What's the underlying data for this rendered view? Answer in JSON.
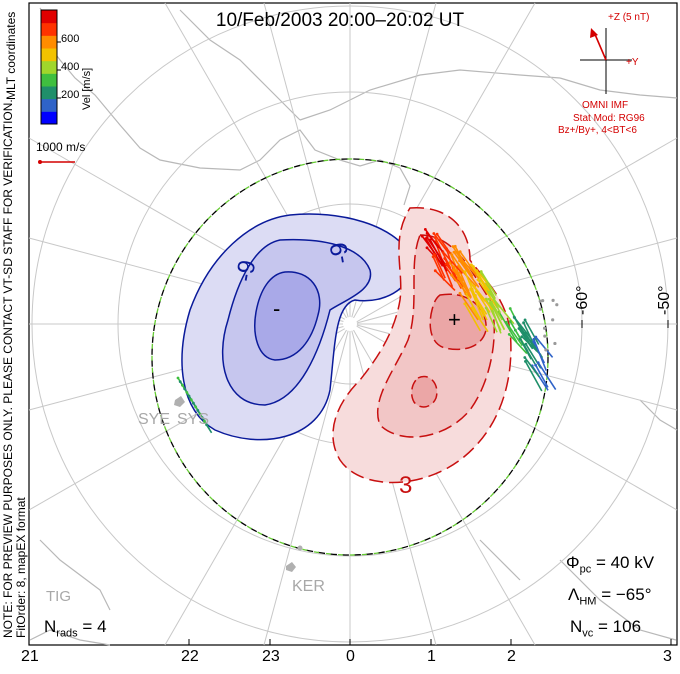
{
  "title": "10/Feb/2003 20:00–20:02 UT",
  "legend": {
    "label": "Vel [m/s]",
    "ticks": [
      "600",
      "400",
      "200"
    ],
    "colors": [
      "#0000ff",
      "#2f63c8",
      "#1f8f6a",
      "#3fbf3f",
      "#a0d62b",
      "#f2c200",
      "#ff8c00",
      "#ff3300",
      "#e00000"
    ],
    "coord_label": "MLT coordinates"
  },
  "scale_vector": "1000 m/s",
  "imf": {
    "z_label": "+Z (5 nT)",
    "y_label": "+Y",
    "source": "OMNI IMF",
    "model": "Stat Mod: RG96",
    "conditions": "Bz+/By+, 4<BT<6"
  },
  "note_line1": "NOTE: FOR PREVIEW PURPOSES ONLY. PLEASE CONTACT VT-SD STAFF FOR VERIFICATION.",
  "note_line2": "FitOrder: 8, mapEX format",
  "latitudes": [
    "-60°",
    "-50°"
  ],
  "stations": [
    "SYE",
    "SYS",
    "KER",
    "TIG"
  ],
  "contour_labels": [
    "-9",
    "-9",
    "-",
    "+",
    "3"
  ],
  "stats": {
    "phi_pc": "Φpc = 40 kV",
    "phi_symbol": "Φ",
    "phi_sub": "pc",
    "phi_value": "= 40 kV",
    "lambda_symbol": "Λ",
    "lambda_sub": "HM",
    "lambda_value": "= −65°",
    "nvc_symbol": "N",
    "nvc_sub": "vc",
    "nvc_value": "= 106",
    "nrads_symbol": "N",
    "nrads_sub": "rads",
    "nrads_value": "= 4"
  },
  "mlt_axis": [
    "21",
    "22",
    "23",
    "0",
    "1",
    "2",
    "3"
  ]
}
